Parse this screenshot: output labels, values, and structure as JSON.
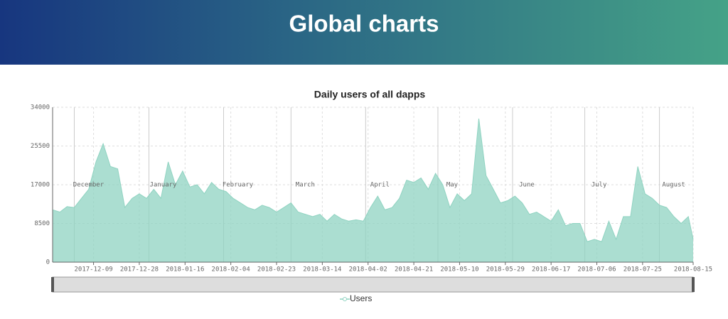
{
  "header": {
    "title": "Global charts"
  },
  "chart_data": {
    "type": "area",
    "title": "Daily users of all dapps",
    "x": [
      "2017-11-22",
      "2017-11-25",
      "2017-11-28",
      "2017-12-01",
      "2017-12-04",
      "2017-12-07",
      "2017-12-10",
      "2017-12-13",
      "2017-12-16",
      "2017-12-19",
      "2017-12-22",
      "2017-12-25",
      "2017-12-28",
      "2017-12-31",
      "2018-01-03",
      "2018-01-06",
      "2018-01-09",
      "2018-01-12",
      "2018-01-15",
      "2018-01-18",
      "2018-01-21",
      "2018-01-24",
      "2018-01-27",
      "2018-01-30",
      "2018-02-02",
      "2018-02-05",
      "2018-02-08",
      "2018-02-11",
      "2018-02-14",
      "2018-02-17",
      "2018-02-20",
      "2018-02-23",
      "2018-02-26",
      "2018-03-01",
      "2018-03-04",
      "2018-03-07",
      "2018-03-10",
      "2018-03-13",
      "2018-03-16",
      "2018-03-19",
      "2018-03-22",
      "2018-03-25",
      "2018-03-28",
      "2018-03-31",
      "2018-04-03",
      "2018-04-06",
      "2018-04-09",
      "2018-04-12",
      "2018-04-15",
      "2018-04-18",
      "2018-04-21",
      "2018-04-24",
      "2018-04-27",
      "2018-04-30",
      "2018-05-03",
      "2018-05-06",
      "2018-05-09",
      "2018-05-12",
      "2018-05-15",
      "2018-05-18",
      "2018-05-21",
      "2018-05-24",
      "2018-05-27",
      "2018-05-30",
      "2018-06-02",
      "2018-06-05",
      "2018-06-08",
      "2018-06-11",
      "2018-06-14",
      "2018-06-17",
      "2018-06-20",
      "2018-06-23",
      "2018-06-26",
      "2018-06-29",
      "2018-07-02",
      "2018-07-05",
      "2018-07-08",
      "2018-07-11",
      "2018-07-14",
      "2018-07-17",
      "2018-07-20",
      "2018-07-23",
      "2018-07-26",
      "2018-07-29",
      "2018-08-01",
      "2018-08-04",
      "2018-08-07",
      "2018-08-10",
      "2018-08-13",
      "2018-08-15"
    ],
    "series": [
      {
        "name": "Users",
        "color": "#8fd3c1",
        "values": [
          11500,
          11000,
          12200,
          12000,
          14000,
          16000,
          22000,
          26000,
          21000,
          20500,
          12000,
          14000,
          15000,
          14000,
          16000,
          14000,
          22000,
          17000,
          20000,
          16500,
          17000,
          15000,
          17500,
          16000,
          15500,
          14000,
          13000,
          12000,
          11500,
          12500,
          12000,
          11000,
          12000,
          13000,
          11000,
          10500,
          10000,
          10500,
          9000,
          10500,
          9500,
          9000,
          9300,
          9000,
          12000,
          14500,
          11500,
          12000,
          14000,
          18000,
          17500,
          18500,
          16000,
          19500,
          17000,
          12000,
          15000,
          13500,
          15000,
          31500,
          19000,
          16000,
          13000,
          13500,
          14500,
          13000,
          10500,
          11000,
          10000,
          9000,
          11500,
          8000,
          8500,
          8500,
          4500,
          5000,
          4500,
          9000,
          5000,
          10000,
          10000,
          21000,
          15000,
          14000,
          12500,
          12000,
          10000,
          8500,
          10000,
          5000
        ]
      }
    ],
    "xlim": [
      "2017-11-22",
      "2018-08-15"
    ],
    "xticks": [
      "2017-12-09",
      "2017-12-28",
      "2018-01-16",
      "2018-02-04",
      "2018-02-23",
      "2018-03-14",
      "2018-04-02",
      "2018-04-21",
      "2018-05-10",
      "2018-05-29",
      "2018-06-17",
      "2018-07-06",
      "2018-07-25",
      "2018-08-15"
    ],
    "month_ticks": [
      {
        "value": "2017-12-01",
        "label": "December"
      },
      {
        "value": "2018-01-01",
        "label": "January"
      },
      {
        "value": "2018-02-01",
        "label": "February"
      },
      {
        "value": "2018-03-01",
        "label": "March"
      },
      {
        "value": "2018-04-01",
        "label": "April"
      },
      {
        "value": "2018-05-01",
        "label": "May"
      },
      {
        "value": "2018-06-01",
        "label": "June"
      },
      {
        "value": "2018-07-01",
        "label": "July"
      },
      {
        "value": "2018-08-01",
        "label": "August"
      }
    ],
    "ylim": [
      0,
      34000
    ],
    "yticks": [
      0,
      8500,
      17000,
      25500,
      34000
    ],
    "grid": true
  }
}
